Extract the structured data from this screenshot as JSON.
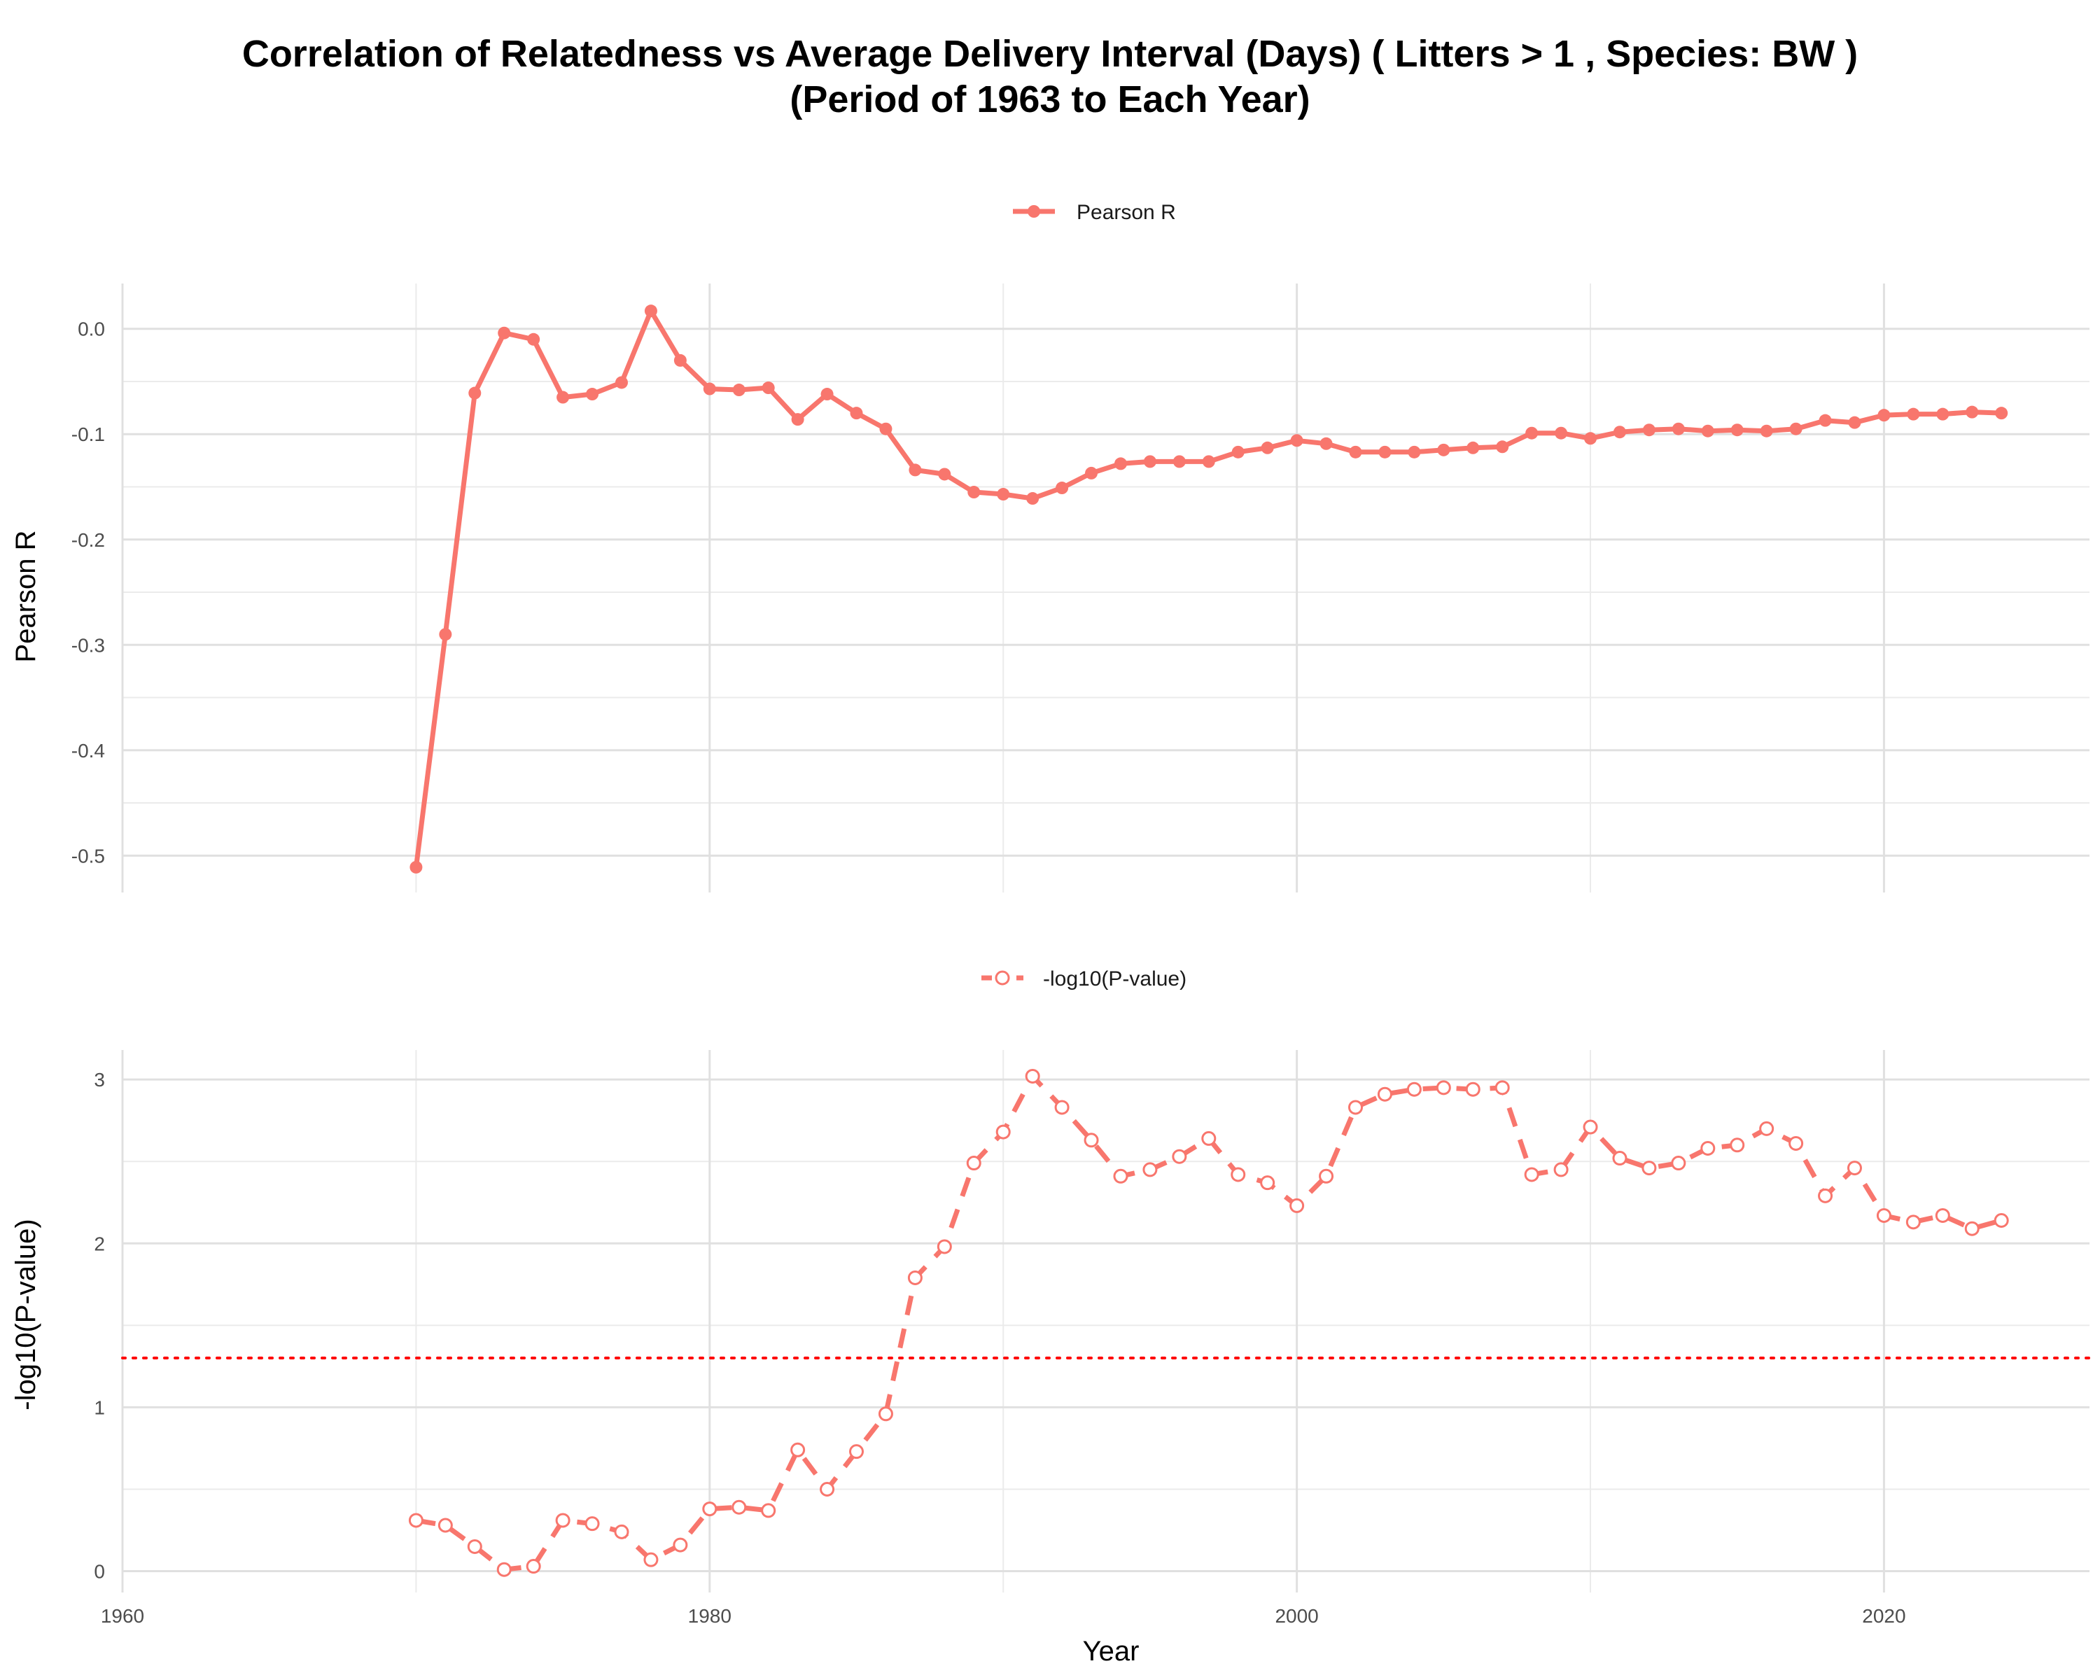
{
  "chart_data": [
    {
      "type": "line",
      "title_line1": "Correlation of Relatedness vs Average Delivery Interval (Days) ( Litters > 1 , Species: BW )",
      "title_line2": "(Period of 1963 to Each Year)",
      "legend": "Pearson R",
      "legend_position": "top",
      "ylabel": "Pearson R",
      "xlim": [
        1960,
        2027
      ],
      "ylim": [
        -0.535,
        0.043
      ],
      "yticks": [
        0.0,
        -0.1,
        -0.2,
        -0.3,
        -0.4,
        -0.5
      ],
      "ytick_labels": [
        "0.0",
        "-0.1",
        "-0.2",
        "-0.3",
        "-0.4",
        "-0.5"
      ],
      "grid": true,
      "color": "#F8766D",
      "marker": "filled-circle",
      "linestyle": "solid",
      "x": [
        1970,
        1971,
        1972,
        1973,
        1974,
        1975,
        1976,
        1977,
        1978,
        1979,
        1980,
        1981,
        1982,
        1983,
        1984,
        1985,
        1986,
        1987,
        1988,
        1989,
        1990,
        1991,
        1992,
        1993,
        1994,
        1995,
        1996,
        1997,
        1998,
        1999,
        2000,
        2001,
        2002,
        2003,
        2004,
        2005,
        2006,
        2007,
        2008,
        2009,
        2010,
        2011,
        2012,
        2013,
        2014,
        2015,
        2016,
        2017,
        2018,
        2019,
        2020,
        2021,
        2022,
        2023,
        2024
      ],
      "y": [
        -0.511,
        -0.29,
        -0.061,
        -0.004,
        -0.01,
        -0.065,
        -0.062,
        -0.051,
        0.017,
        -0.03,
        -0.057,
        -0.058,
        -0.056,
        -0.086,
        -0.062,
        -0.08,
        -0.095,
        -0.134,
        -0.138,
        -0.155,
        -0.157,
        -0.161,
        -0.151,
        -0.137,
        -0.128,
        -0.126,
        -0.126,
        -0.126,
        -0.117,
        -0.113,
        -0.106,
        -0.109,
        -0.117,
        -0.117,
        -0.117,
        -0.115,
        -0.113,
        -0.112,
        -0.099,
        -0.099,
        -0.104,
        -0.098,
        -0.096,
        -0.095,
        -0.097,
        -0.096,
        -0.097,
        -0.095,
        -0.087,
        -0.089,
        -0.082,
        -0.081,
        -0.081,
        -0.079,
        -0.08
      ]
    },
    {
      "type": "line",
      "legend": "-log10(P-value)",
      "legend_position": "top",
      "xlabel": "Year",
      "ylabel": "-log10(P-value)",
      "xlim": [
        1960,
        2027
      ],
      "ylim": [
        -0.13,
        3.18
      ],
      "xticks": [
        1960,
        1980,
        2000,
        2020
      ],
      "xtick_labels": [
        "1960",
        "1980",
        "2000",
        "2020"
      ],
      "yticks": [
        0,
        1,
        2,
        3
      ],
      "ytick_labels": [
        "0",
        "1",
        "2",
        "3"
      ],
      "threshold": 1.30103,
      "threshold_color": "#FF0000",
      "grid": true,
      "color": "#F8766D",
      "marker": "open-circle",
      "linestyle": "dashed",
      "x": [
        1970,
        1971,
        1972,
        1973,
        1974,
        1975,
        1976,
        1977,
        1978,
        1979,
        1980,
        1981,
        1982,
        1983,
        1984,
        1985,
        1986,
        1987,
        1988,
        1989,
        1990,
        1991,
        1992,
        1993,
        1994,
        1995,
        1996,
        1997,
        1998,
        1999,
        2000,
        2001,
        2002,
        2003,
        2004,
        2005,
        2006,
        2007,
        2008,
        2009,
        2010,
        2011,
        2012,
        2013,
        2014,
        2015,
        2016,
        2017,
        2018,
        2019,
        2020,
        2021,
        2022,
        2023,
        2024
      ],
      "y": [
        0.31,
        0.28,
        0.15,
        0.01,
        0.03,
        0.31,
        0.29,
        0.24,
        0.07,
        0.16,
        0.38,
        0.39,
        0.37,
        0.74,
        0.5,
        0.73,
        0.96,
        1.79,
        1.98,
        2.49,
        2.68,
        3.02,
        2.83,
        2.63,
        2.41,
        2.45,
        2.53,
        2.64,
        2.42,
        2.37,
        2.23,
        2.41,
        2.83,
        2.91,
        2.94,
        2.95,
        2.94,
        2.95,
        2.42,
        2.45,
        2.71,
        2.52,
        2.46,
        2.49,
        2.58,
        2.6,
        2.7,
        2.61,
        2.29,
        2.46,
        2.17,
        2.13,
        2.17,
        2.09,
        2.14
      ]
    }
  ]
}
